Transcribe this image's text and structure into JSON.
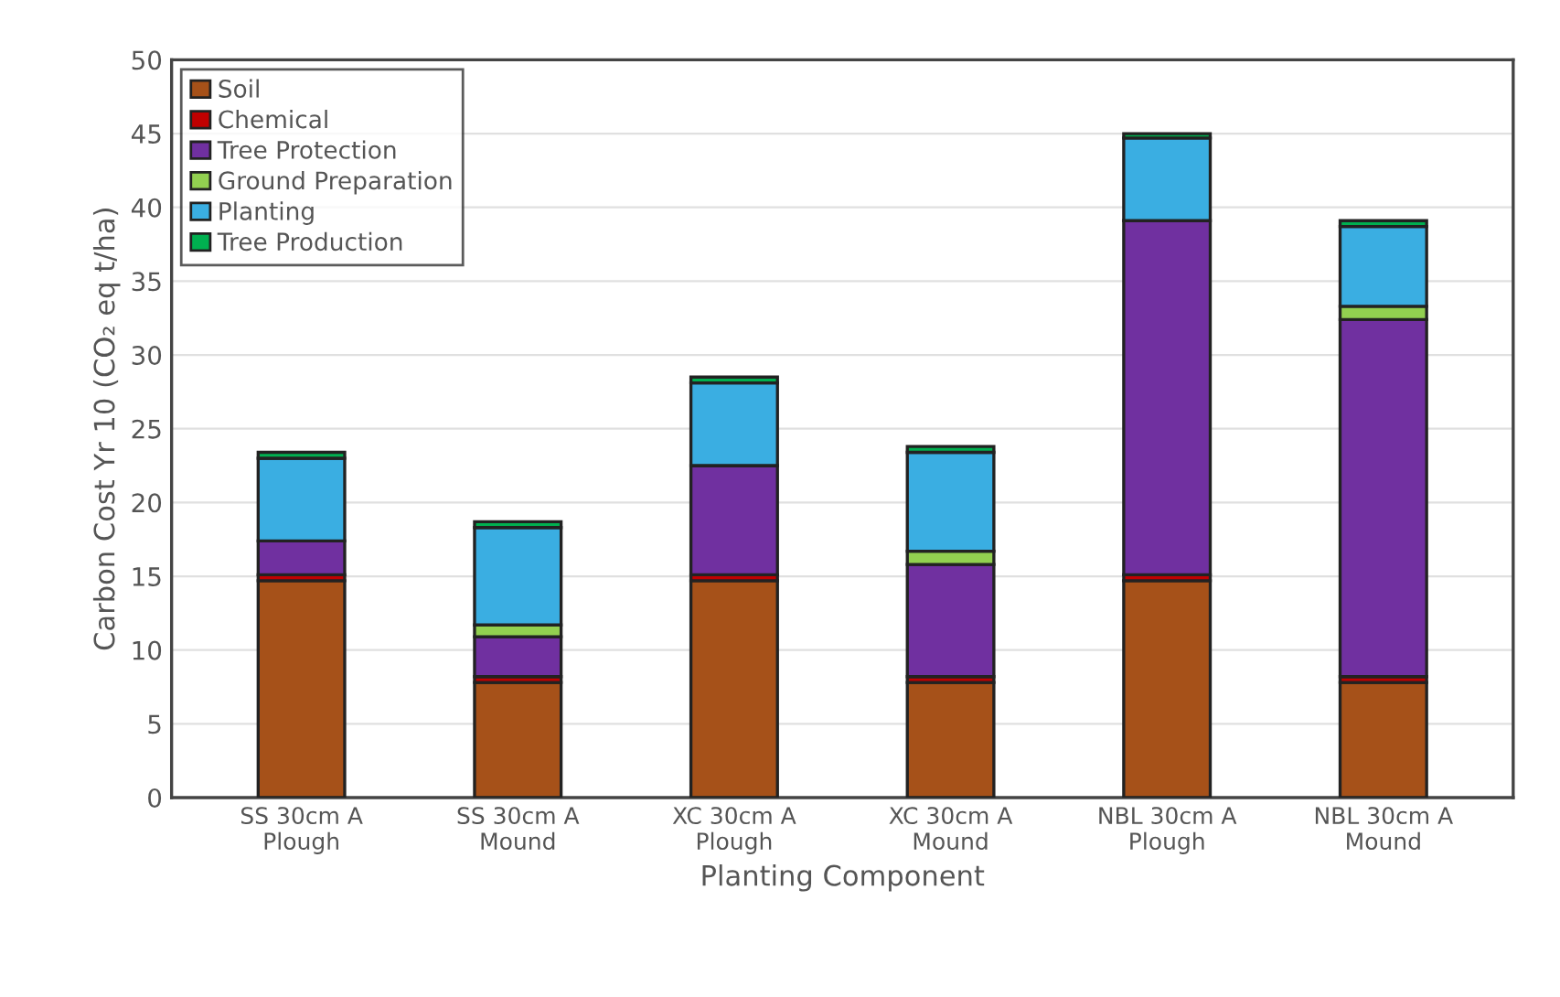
{
  "chart_data": {
    "type": "bar",
    "stacked": true,
    "xlabel": "Planting Component",
    "ylabel": "Carbon Cost Yr 10 (CO₂ eq t/ha)",
    "categories": [
      "SS 30cm A\nPlough",
      "SS 30cm A\nMound",
      "XC 30cm A\nPlough",
      "XC 30cm A\nMound",
      "NBL 30cm A\nPlough",
      "NBL 30cm A\nMound"
    ],
    "series": [
      {
        "name": "Soil",
        "color": "#a65119",
        "values": [
          14.7,
          7.8,
          14.7,
          7.8,
          14.7,
          7.8
        ]
      },
      {
        "name": "Chemical",
        "color": "#c00000",
        "values": [
          0.4,
          0.4,
          0.4,
          0.4,
          0.4,
          0.4
        ]
      },
      {
        "name": "Tree Protection",
        "color": "#7030a0",
        "values": [
          2.3,
          2.7,
          7.4,
          7.6,
          24.0,
          24.2
        ]
      },
      {
        "name": "Ground Preparation",
        "color": "#92d050",
        "values": [
          0,
          0.8,
          0,
          0.9,
          0,
          0.9
        ]
      },
      {
        "name": "Planting",
        "color": "#3aaee2",
        "values": [
          5.6,
          6.6,
          5.6,
          6.7,
          5.6,
          5.4
        ]
      },
      {
        "name": "Tree Production",
        "color": "#00b050",
        "values": [
          0.4,
          0.4,
          0.4,
          0.4,
          0.3,
          0.4
        ]
      }
    ],
    "ylim": [
      0,
      50
    ],
    "yticks": [
      0,
      5,
      10,
      15,
      20,
      25,
      30,
      35,
      40,
      45,
      50
    ],
    "grid": "y",
    "legend": "top left"
  }
}
